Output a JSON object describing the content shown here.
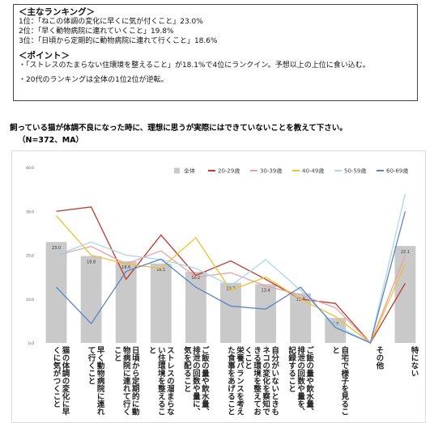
{
  "summary": {
    "ranking_heading": "＜主なランキング＞",
    "ranking": [
      "1位：「ねこの体調の変化に早くに気が付くこと」23.0%",
      "2位：「早く動物病院に連れていくこと」19.8%",
      "3位：「日頃から定期的に動物病院に連れて行くこと」18.6%"
    ],
    "point_heading": "＜ポイント＞",
    "points": [
      "・「ストレスのたまらない住環境を整えること」が18.1%で4位にランクイン。予想以上の上位に食い込む。",
      "・20代のランキングは全体の1位2位が逆転。"
    ]
  },
  "chart_data": {
    "type": "bar-line",
    "title": "飼っている猫が体調不良になった時に、理想に思うが実際にはできていないことを教えて下さい。",
    "subtitle": "（N=372、MA）",
    "categories": [
      "猫の体調の変化に早くに気がつくこと",
      "早く動物病院に連れて行くこと",
      "日頃から定期的に動物病院に連れて行くこと",
      "ストレスの溜まらない住環境を整えること",
      "ご飯の量や飲水量、排泄の回数や量に、気を配ること",
      "栄養バランスを考えた食事をあげること",
      "自分がいないときもネコの変化を察知できる環境を整えておくこと",
      "ご飯の量や飲水量、排泄の回数や量を、記録すること",
      "自宅で様子を見ること",
      "その他",
      "特にない"
    ],
    "ylim": [
      0,
      40
    ],
    "yticks": [
      {
        "value": 0,
        "label": "0.0"
      },
      {
        "value": 10,
        "label": "10.0"
      },
      {
        "value": 20,
        "label": "20.0"
      },
      {
        "value": 30,
        "label": "30.0"
      },
      {
        "value": 40,
        "label": "40.0"
      }
    ],
    "grid": false,
    "legend": "top",
    "series": [
      {
        "name": "全体",
        "type": "bar",
        "color": "#c9c9c9",
        "values": [
          23,
          19.8,
          18.6,
          18.1,
          16.2,
          13.7,
          13.4,
          11.3,
          5.7,
          0,
          22.1
        ],
        "value_labels": [
          "23.0",
          "19.8",
          "18.6",
          "18.1",
          "16.2",
          "13.7",
          "13.4",
          "11.3",
          "5.7",
          null,
          "22.1"
        ]
      },
      {
        "name": "20-29歳",
        "type": "line",
        "color": "#c0392b",
        "values": [
          30,
          31,
          14.5,
          24.6,
          15.4,
          18.7,
          14.5,
          10,
          9,
          0,
          13.6
        ]
      },
      {
        "name": "30-39歳",
        "type": "line",
        "color": "#e8a0a8",
        "values": [
          20,
          22,
          18,
          21,
          15,
          16,
          13,
          11,
          8,
          0,
          20
        ]
      },
      {
        "name": "40-49歳",
        "type": "line",
        "color": "#f0c030",
        "values": [
          29,
          20,
          18,
          17,
          24,
          12,
          15,
          10,
          6,
          0,
          18
        ]
      },
      {
        "name": "50-59歳",
        "type": "line",
        "color": "#a8d8ea",
        "values": [
          20,
          23,
          20,
          19,
          17,
          13,
          19,
          12,
          4,
          0,
          34
        ]
      },
      {
        "name": "60-69歳",
        "type": "line",
        "color": "#5b84c4",
        "values": [
          12.7,
          4.4,
          16.3,
          19.1,
          12.7,
          8.4,
          7.7,
          12.7,
          3.5,
          0,
          30
        ]
      }
    ]
  }
}
